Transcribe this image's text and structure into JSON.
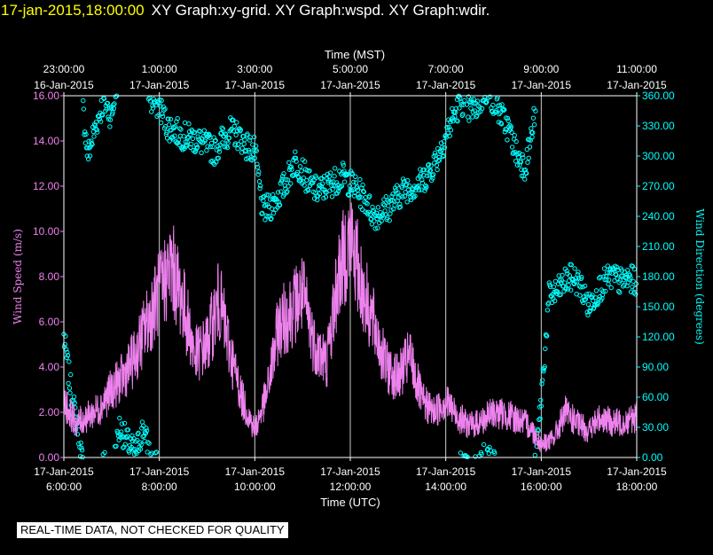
{
  "title": {
    "timestamp": "17-jan-2015,18:00:00",
    "graphs": "XY Graph:xy-grid.  XY Graph:wspd.  XY Graph:wdir."
  },
  "notice": "REAL-TIME DATA, NOT CHECKED FOR QUALITY",
  "colors": {
    "background": "#000000",
    "wind_speed": "#ee82ee",
    "wind_direction": "#00ffff",
    "grid": "#ffffff",
    "title_time": "#ffff00"
  },
  "chart_data": {
    "type": "scatter",
    "x_top_label": "Time (MST)",
    "x_bottom_label": "Time (UTC)",
    "x_range_utc": [
      "17-Jan-2015 6:00:00",
      "17-Jan-2015 18:00:00"
    ],
    "x_bottom_ticks": [
      {
        "date": "17-Jan-2015",
        "time": "6:00:00"
      },
      {
        "date": "17-Jan-2015",
        "time": "8:00:00"
      },
      {
        "date": "17-Jan-2015",
        "time": "10:00:00"
      },
      {
        "date": "17-Jan-2015",
        "time": "12:00:00"
      },
      {
        "date": "17-Jan-2015",
        "time": "14:00:00"
      },
      {
        "date": "17-Jan-2015",
        "time": "16:00:00"
      },
      {
        "date": "17-Jan-2015",
        "time": "18:00:00"
      }
    ],
    "x_top_ticks": [
      {
        "time": "23:00:00",
        "date": "16-Jan-2015"
      },
      {
        "time": "1:00:00",
        "date": "17-Jan-2015"
      },
      {
        "time": "3:00:00",
        "date": "17-Jan-2015"
      },
      {
        "time": "5:00:00",
        "date": "17-Jan-2015"
      },
      {
        "time": "7:00:00",
        "date": "17-Jan-2015"
      },
      {
        "time": "9:00:00",
        "date": "17-Jan-2015"
      },
      {
        "time": "11:00:00",
        "date": "17-Jan-2015"
      }
    ],
    "y_left": {
      "label": "Wind Speed (m/s)",
      "range": [
        0,
        16
      ],
      "ticks": [
        "0.00",
        "2.00",
        "4.00",
        "6.00",
        "8.00",
        "10.00",
        "12.00",
        "14.00",
        "16.00"
      ]
    },
    "y_right": {
      "label": "Wind Direction (degrees)",
      "range": [
        0,
        360
      ],
      "ticks": [
        "0.00",
        "30.00",
        "60.00",
        "90.00",
        "120.00",
        "150.00",
        "180.00",
        "210.00",
        "240.00",
        "270.00",
        "300.00",
        "330.00",
        "360.00"
      ]
    },
    "grid": true,
    "series": [
      {
        "key": "wind_speed",
        "axis": "left",
        "style": "line",
        "x_utc": [
          "6:00",
          "6:15",
          "6:30",
          "6:45",
          "7:00",
          "7:15",
          "7:30",
          "7:45",
          "8:00",
          "8:15",
          "8:30",
          "8:45",
          "9:00",
          "9:15",
          "9:30",
          "9:45",
          "10:00",
          "10:15",
          "10:30",
          "10:45",
          "11:00",
          "11:15",
          "11:30",
          "11:45",
          "12:00",
          "12:15",
          "12:30",
          "12:45",
          "13:00",
          "13:15",
          "13:30",
          "13:45",
          "14:00",
          "14:15",
          "14:30",
          "14:45",
          "15:00",
          "15:15",
          "15:30",
          "15:45",
          "16:00",
          "16:15",
          "16:30",
          "16:45",
          "17:00",
          "17:15",
          "17:30",
          "17:45",
          "18:00"
        ],
        "values": [
          2.5,
          1.5,
          1.8,
          2.2,
          3.0,
          3.6,
          4.5,
          6.0,
          7.3,
          8.5,
          6.8,
          4.5,
          5.0,
          7.0,
          4.5,
          2.5,
          1.2,
          2.8,
          5.8,
          6.5,
          7.2,
          5.0,
          4.2,
          8.0,
          9.8,
          7.5,
          5.8,
          4.0,
          3.5,
          4.5,
          2.5,
          2.0,
          2.5,
          1.8,
          1.4,
          1.6,
          2.0,
          1.9,
          1.7,
          1.4,
          0.6,
          0.8,
          2.0,
          1.5,
          1.2,
          1.8,
          1.5,
          1.6,
          1.8
        ]
      },
      {
        "key": "wind_direction",
        "axis": "right",
        "style": "circles",
        "x_utc": [
          "6:00",
          "6:10",
          "6:20",
          "6:30",
          "6:40",
          "6:50",
          "7:00",
          "7:10",
          "7:20",
          "7:30",
          "7:40",
          "7:50",
          "8:00",
          "8:10",
          "8:20",
          "8:30",
          "8:40",
          "8:50",
          "9:00",
          "9:10",
          "9:20",
          "9:30",
          "9:40",
          "9:50",
          "10:00",
          "10:10",
          "10:20",
          "10:30",
          "10:40",
          "10:50",
          "11:00",
          "11:10",
          "11:20",
          "11:30",
          "11:40",
          "11:50",
          "12:00",
          "12:10",
          "12:20",
          "12:30",
          "12:40",
          "12:50",
          "13:00",
          "13:10",
          "13:20",
          "13:30",
          "13:40",
          "13:50",
          "14:00",
          "14:10",
          "14:20",
          "14:30",
          "14:40",
          "14:50",
          "15:00",
          "15:10",
          "15:20",
          "15:30",
          "15:40",
          "15:50",
          "16:00",
          "16:10",
          "16:20",
          "16:30",
          "16:40",
          "16:50",
          "17:00",
          "17:10",
          "17:20",
          "17:30",
          "17:40",
          "17:50",
          "18:00"
        ],
        "values": [
          120,
          60,
          20,
          300,
          330,
          355,
          340,
          30,
          15,
          5,
          30,
          355,
          350,
          330,
          325,
          320,
          318,
          315,
          310,
          305,
          318,
          325,
          320,
          310,
          305,
          245,
          250,
          260,
          275,
          295,
          285,
          270,
          265,
          270,
          275,
          280,
          273,
          265,
          255,
          240,
          245,
          250,
          260,
          268,
          270,
          275,
          285,
          300,
          320,
          340,
          355,
          345,
          350,
          5,
          355,
          340,
          325,
          300,
          290,
          330,
          60,
          160,
          165,
          175,
          180,
          170,
          150,
          165,
          175,
          180,
          175,
          178,
          175
        ]
      }
    ]
  }
}
